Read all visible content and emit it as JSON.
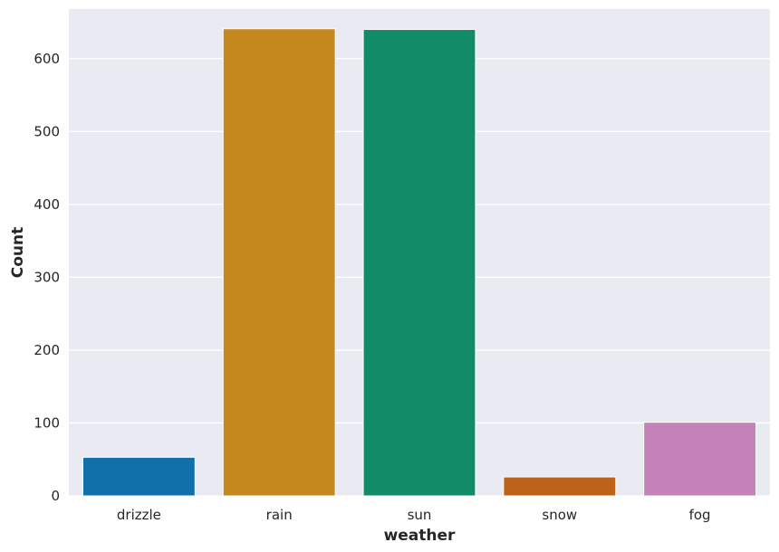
{
  "chart_data": {
    "type": "bar",
    "categories": [
      "drizzle",
      "rain",
      "sun",
      "snow",
      "fog"
    ],
    "values": [
      53,
      641,
      640,
      26,
      101
    ],
    "colors": [
      "#1170aa",
      "#c4881f",
      "#128b68",
      "#bd621a",
      "#c382b8"
    ],
    "xlabel": "weather",
    "ylabel": "Count",
    "ylim": [
      0,
      668
    ],
    "yticks": [
      0,
      100,
      200,
      300,
      400,
      500,
      600
    ],
    "grid": true,
    "background": "#eaeaf2",
    "grid_color": "#ffffff"
  }
}
